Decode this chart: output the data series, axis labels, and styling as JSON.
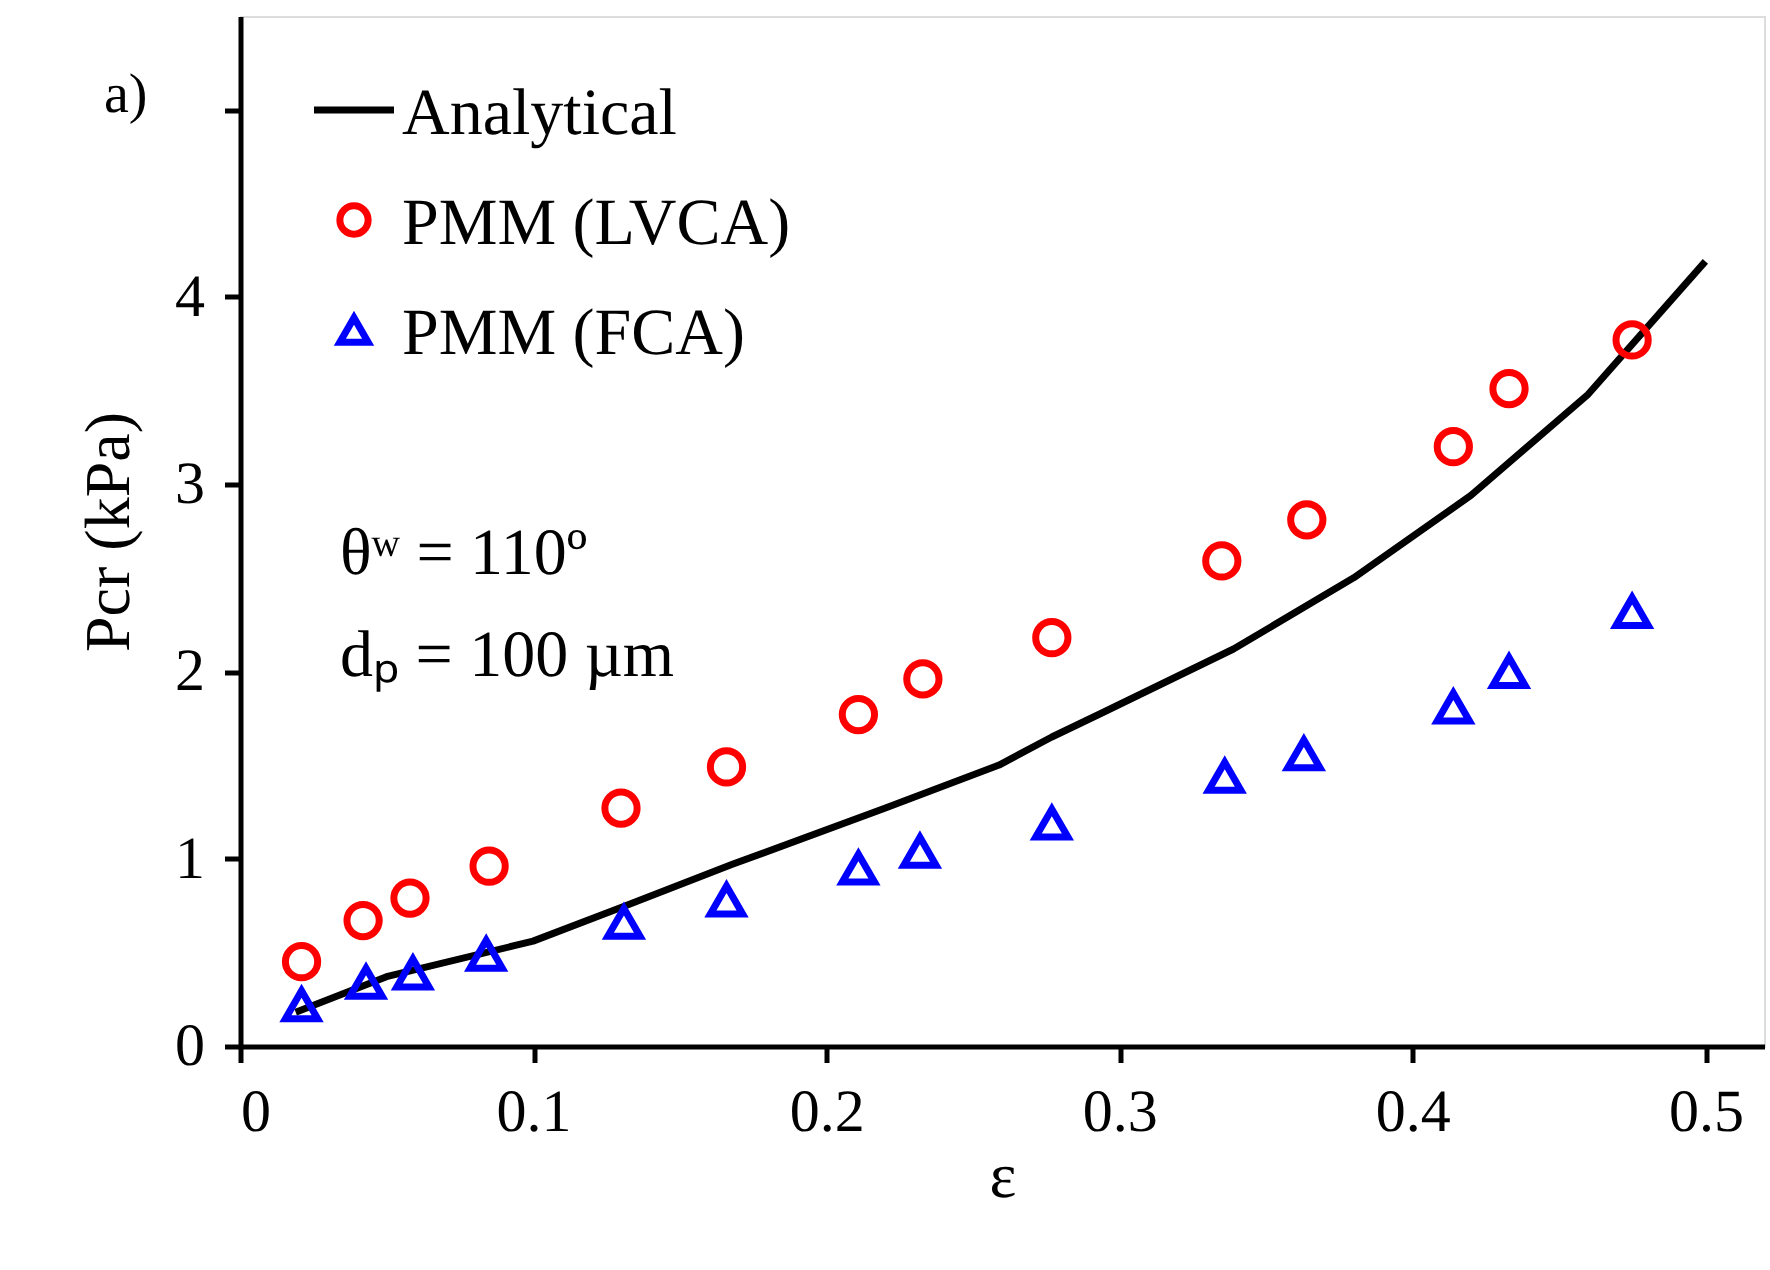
{
  "chart_data": {
    "type": "scatter",
    "xlabel": "ε",
    "ylabel": "Pcr (kPa)",
    "annotations": [
      "a)",
      "θʷ = 110º",
      "dₚ = 100 µm"
    ],
    "xlim": [
      0,
      0.52
    ],
    "xticks": [
      0,
      0.1,
      0.2,
      0.3,
      0.4,
      0.5
    ],
    "ylim": [
      0,
      5.5
    ],
    "yticks": [
      0,
      1,
      2,
      3,
      4,
      {
        "value": 5,
        "label": null
      }
    ],
    "legend": "top left",
    "grid": false,
    "series": [
      {
        "name": "Analytical",
        "type": "line",
        "color": "#000000",
        "x": [
          0.019,
          0.05,
          0.1,
          0.13,
          0.168,
          0.22,
          0.259,
          0.277,
          0.293,
          0.339,
          0.38,
          0.42,
          0.46,
          0.5
        ],
        "values": [
          0.18,
          0.37,
          0.56,
          0.74,
          0.97,
          1.27,
          1.5,
          1.65,
          1.77,
          2.12,
          2.5,
          2.94,
          3.48,
          4.19
        ]
      },
      {
        "name": "PMM (LVCA)",
        "marker": "circle",
        "color": "#ff0000",
        "x": [
          0.021,
          0.042,
          0.058,
          0.085,
          0.13,
          0.166,
          0.211,
          0.233,
          0.277,
          0.335,
          0.364,
          0.414,
          0.433,
          0.475
        ],
        "values": [
          0.45,
          0.67,
          0.79,
          0.96,
          1.27,
          1.49,
          1.77,
          1.96,
          2.18,
          2.59,
          2.81,
          3.2,
          3.51,
          3.77
        ]
      },
      {
        "name": "PMM (FCA)",
        "marker": "triangle",
        "color": "#0000ff",
        "x": [
          0.021,
          0.043,
          0.059,
          0.084,
          0.131,
          0.166,
          0.211,
          0.232,
          0.277,
          0.336,
          0.363,
          0.414,
          0.433,
          0.475
        ],
        "values": [
          0.22,
          0.34,
          0.39,
          0.49,
          0.66,
          0.78,
          0.95,
          1.04,
          1.19,
          1.44,
          1.56,
          1.81,
          2.0,
          2.32
        ]
      }
    ]
  }
}
